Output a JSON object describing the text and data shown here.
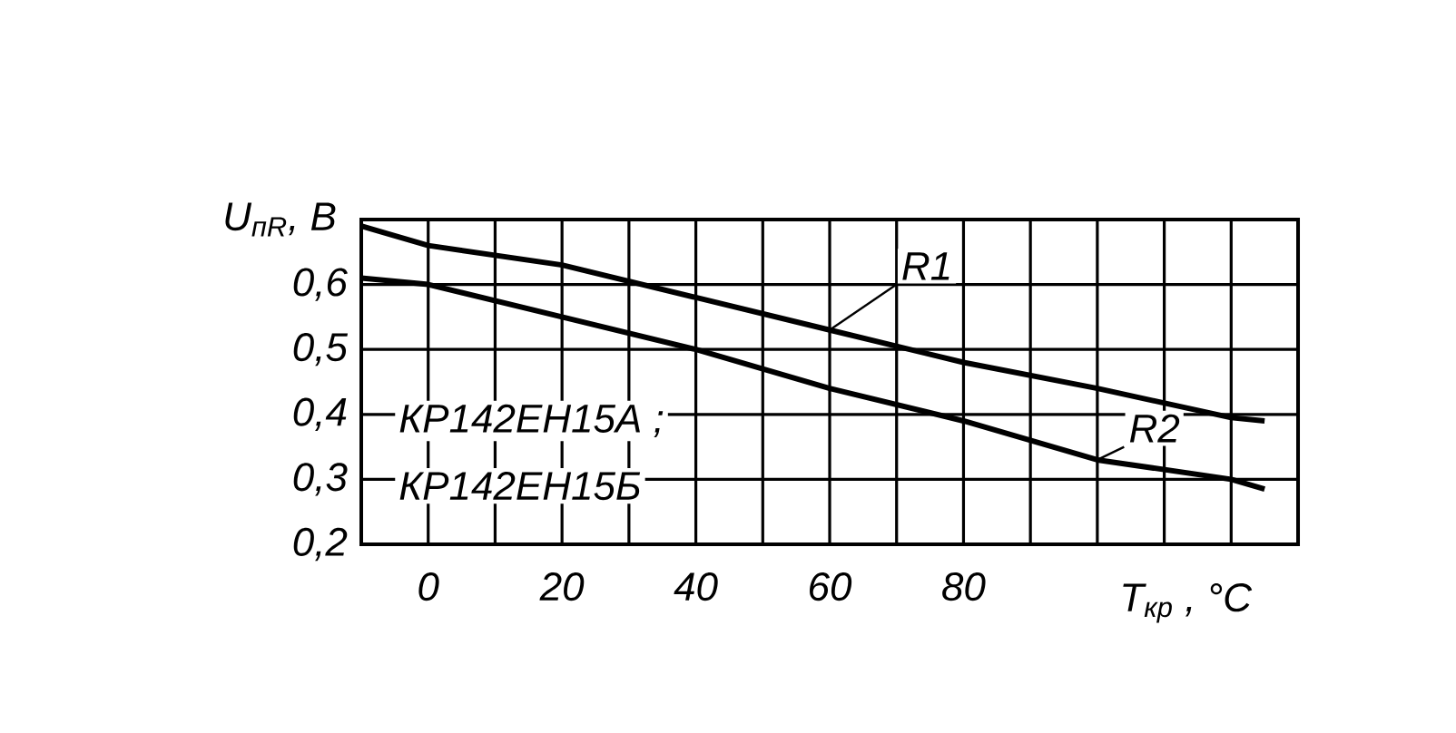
{
  "chart_data": {
    "type": "line",
    "xlabel": "T$_{кр}$ , °C",
    "ylabel": "U$_{пR}$, В",
    "xlim": [
      -10,
      130
    ],
    "xticks": [
      {
        "value": -10,
        "label": null
      },
      0,
      {
        "value": 10,
        "label": null
      },
      20,
      {
        "value": 30,
        "label": null
      },
      40,
      {
        "value": 50,
        "label": null
      },
      60,
      {
        "value": 70,
        "label": null
      },
      80,
      {
        "value": 90,
        "label": null
      },
      {
        "value": 100,
        "label": null
      },
      {
        "value": 110,
        "label": null
      },
      {
        "value": 120,
        "label": null
      },
      {
        "value": 130,
        "label": null
      }
    ],
    "ylim": [
      0.2,
      0.7
    ],
    "yticks": [
      {
        "value": 0.2,
        "label": "0,2"
      },
      {
        "value": 0.3,
        "label": "0,3"
      },
      {
        "value": 0.4,
        "label": "0,4"
      },
      {
        "value": 0.5,
        "label": "0,5"
      },
      {
        "value": 0.6,
        "label": "0,6"
      },
      {
        "value": 0.7,
        "label": null
      }
    ],
    "grid": true,
    "series": [
      {
        "name": "R1",
        "color": "#000000",
        "x": [
          -10,
          0,
          20,
          40,
          60,
          80,
          100,
          120,
          125
        ],
        "values": [
          0.69,
          0.66,
          0.63,
          0.58,
          0.53,
          0.48,
          0.44,
          0.395,
          0.39
        ]
      },
      {
        "name": "R2",
        "color": "#000000",
        "x": [
          -10,
          0,
          20,
          40,
          60,
          80,
          100,
          120,
          125
        ],
        "values": [
          0.61,
          0.6,
          0.55,
          0.5,
          0.44,
          0.39,
          0.33,
          0.3,
          0.285
        ]
      }
    ],
    "annotations": [
      "КР142ЕН15А ;",
      "КР142ЕН15Б"
    ]
  }
}
